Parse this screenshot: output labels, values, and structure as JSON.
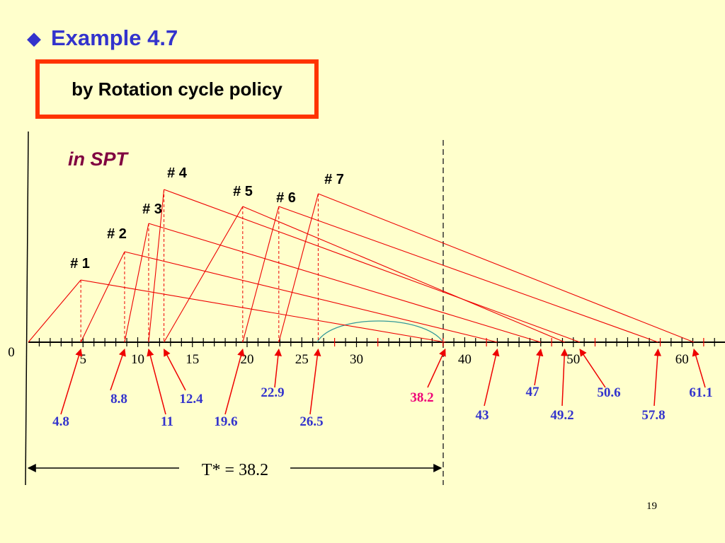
{
  "title": "Example 4.7",
  "title_icon": "diamond-bullet-icon",
  "subtitle": "by Rotation cycle policy",
  "spt_label": "in SPT",
  "origin_label": "0",
  "axis_ticks": [
    "5",
    "10",
    "15",
    "20",
    "25",
    "30",
    "40",
    "50",
    "60"
  ],
  "jobs": [
    {
      "label": "# 1",
      "start": 0,
      "completion": 4.8,
      "end": 38.2
    },
    {
      "label": "# 2",
      "start": 4.8,
      "completion": 8.8,
      "end": 43
    },
    {
      "label": "# 3",
      "start": 8.8,
      "completion": 11,
      "end": 47
    },
    {
      "label": "# 4",
      "start": 11,
      "completion": 12.4,
      "end": 50.6
    },
    {
      "label": "# 5",
      "start": 12.4,
      "completion": 19.6,
      "end": 49.2
    },
    {
      "label": "# 6",
      "start": 19.6,
      "completion": 22.9,
      "end": 57.8
    },
    {
      "label": "# 7",
      "start": 22.9,
      "completion": 26.5,
      "end": 61.1
    }
  ],
  "markers": [
    "4.8",
    "8.8",
    "11",
    "12.4",
    "19.6",
    "22.9",
    "26.5",
    "38.2",
    "43",
    "47",
    "49.2",
    "50.6",
    "57.8",
    "61.1"
  ],
  "cycle_label": "T* = 38.2",
  "page_number": "19",
  "colors": {
    "title": "#3333CC",
    "box_border": "#FF3300",
    "spt": "#800040",
    "line": "#EE0000",
    "marker_text": "#3333CC",
    "highlight": "#EE0077",
    "arc": "#339999"
  }
}
